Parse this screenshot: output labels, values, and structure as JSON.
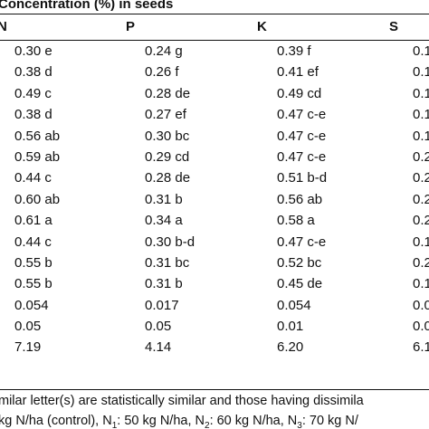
{
  "title": "Concentration (%) in seeds",
  "headers": [
    "N",
    "P",
    "K",
    "S"
  ],
  "rows": [
    [
      "0.30 e",
      "0.24 g",
      "0.39 f",
      "0.1"
    ],
    [
      "0.38 d",
      "0.26 f",
      "0.41 ef",
      "0.1"
    ],
    [
      "0.49 c",
      "0.28 de",
      "0.49 cd",
      "0.1"
    ],
    [
      "0.38 d",
      "0.27 ef",
      "0.47 c-e",
      "0.1"
    ],
    [
      "0.56 ab",
      "0.30 bc",
      "0.47 c-e",
      "0.1"
    ],
    [
      "0.59 ab",
      "0.29 cd",
      "0.47 c-e",
      "0.2"
    ],
    [
      "0.44 c",
      "0.28 de",
      "0.51 b-d",
      "0.2"
    ],
    [
      "0.60 ab",
      "0.31 b",
      "0.56 ab",
      "0.2"
    ],
    [
      "0.61 a",
      "0.34 a",
      "0.58 a",
      "0.2"
    ],
    [
      "0.44 c",
      "0.30 b-d",
      "0.47 c-e",
      "0.1"
    ],
    [
      "0.55 b",
      "0.31 bc",
      "0.52 bc",
      "0.2"
    ],
    [
      "0.55 b",
      "0.31 b",
      "0.45 de",
      "0.1"
    ],
    [
      "0.054",
      "0.017",
      "0.054",
      "0.0"
    ],
    [
      "0.05",
      "0.05",
      "0.01",
      "0.0"
    ],
    [
      "7.19",
      "4.14",
      "6.20",
      "6.1"
    ]
  ],
  "footnote_line1": "milar letter(s) are statistically similar and those having dissimila",
  "footnote_line2": {
    "seg1": "kg N/ha (control), N",
    "sub1": "1",
    "seg2": ": 50 kg N/ha, N",
    "sub2": "2",
    "seg3": ": 60 kg N/ha, N",
    "sub3": "3",
    "seg4": ": 70 kg N/"
  }
}
